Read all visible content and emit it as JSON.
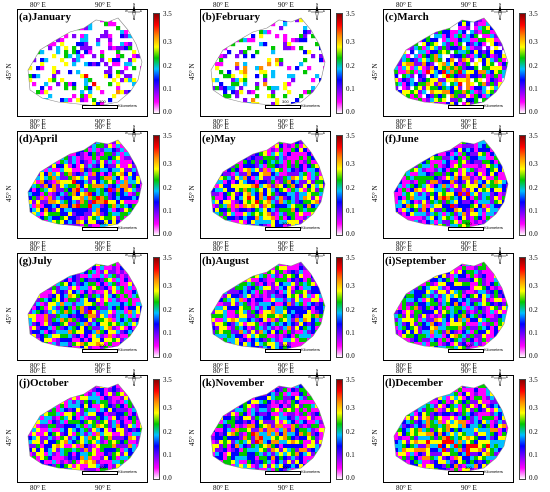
{
  "figure": {
    "panels": [
      {
        "label": "(a)January"
      },
      {
        "label": "(b)February"
      },
      {
        "label": "(c)March"
      },
      {
        "label": "(d)April"
      },
      {
        "label": "(e)May"
      },
      {
        "label": "(f)June"
      },
      {
        "label": "(g)July"
      },
      {
        "label": "(h)August"
      },
      {
        "label": "(i)September"
      },
      {
        "label": "(j)October"
      },
      {
        "label": "(k)November"
      },
      {
        "label": "(l)December"
      }
    ],
    "lon_ticks": [
      "80° E",
      "90° E"
    ],
    "lat_tick": "45° N",
    "colorbar_ticks": [
      "3.5",
      "0.3",
      "0.2",
      "0.1",
      "0.0"
    ],
    "colorbar_colors": [
      "#8b0000",
      "#ff0000",
      "#ff8c00",
      "#ffff00",
      "#00c800",
      "#00bfff",
      "#0000ff",
      "#8000ff",
      "#ff00ff",
      "#ffffff"
    ],
    "scale_bar": {
      "value": "300",
      "unit": "Kilometers"
    },
    "north_arrow": {
      "N": "N",
      "S": "S",
      "E": "E",
      "W": "W"
    }
  }
}
